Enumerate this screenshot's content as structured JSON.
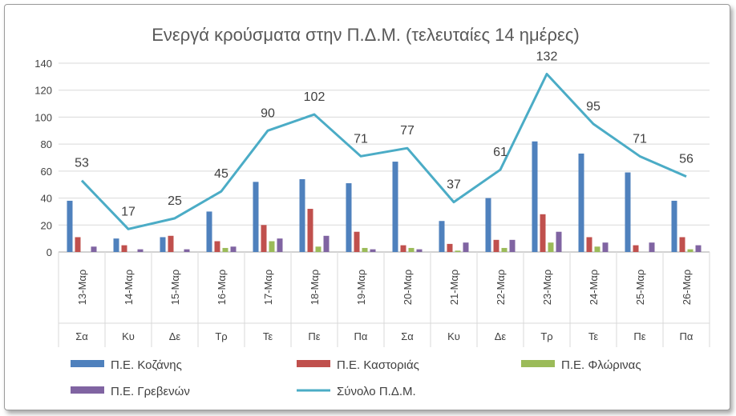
{
  "chart_data": {
    "type": "bar",
    "title": "Ενεργά κρούσματα στην Π.Δ.Μ. (τελευταίες 14 ημέρες)",
    "xlabel": "",
    "ylabel": "",
    "ylim": [
      0,
      140
    ],
    "yticks": [
      0,
      20,
      40,
      60,
      80,
      100,
      120,
      140
    ],
    "grid": true,
    "legend": "bottom",
    "categories": [
      "13-Μαρ",
      "14-Μαρ",
      "15-Μαρ",
      "16-Μαρ",
      "17-Μαρ",
      "18-Μαρ",
      "19-Μαρ",
      "20-Μαρ",
      "21-Μαρ",
      "22-Μαρ",
      "23-Μαρ",
      "24-Μαρ",
      "25-Μαρ",
      "26-Μαρ"
    ],
    "days": [
      "Σα",
      "Κυ",
      "Δε",
      "Τρ",
      "Τε",
      "Πε",
      "Πα",
      "Σα",
      "Κυ",
      "Δε",
      "Τρ",
      "Τε",
      "Πε",
      "Πα"
    ],
    "series": [
      {
        "name": "Π.Ε. Κοζάνης",
        "color": "#4f81bd",
        "values": [
          38,
          10,
          11,
          30,
          52,
          54,
          51,
          67,
          23,
          40,
          82,
          73,
          59,
          38
        ]
      },
      {
        "name": "Π.Ε. Καστοριάς",
        "color": "#c0504d",
        "values": [
          11,
          5,
          12,
          8,
          20,
          32,
          15,
          5,
          6,
          9,
          28,
          11,
          5,
          11
        ]
      },
      {
        "name": "Π.Ε. Φλώρινας",
        "color": "#9bbb59",
        "values": [
          0,
          0,
          0,
          3,
          8,
          4,
          3,
          3,
          1,
          3,
          7,
          4,
          0,
          2
        ]
      },
      {
        "name": "Π.Ε. Γρεβενών",
        "color": "#8064a2",
        "values": [
          4,
          2,
          2,
          4,
          10,
          12,
          2,
          2,
          7,
          9,
          15,
          7,
          7,
          5
        ]
      }
    ],
    "total": {
      "name": "Σύνολο Π.Δ.Μ.",
      "color": "#4bacc6",
      "values": [
        53,
        17,
        25,
        45,
        90,
        102,
        71,
        77,
        37,
        61,
        132,
        95,
        71,
        56
      ]
    }
  }
}
